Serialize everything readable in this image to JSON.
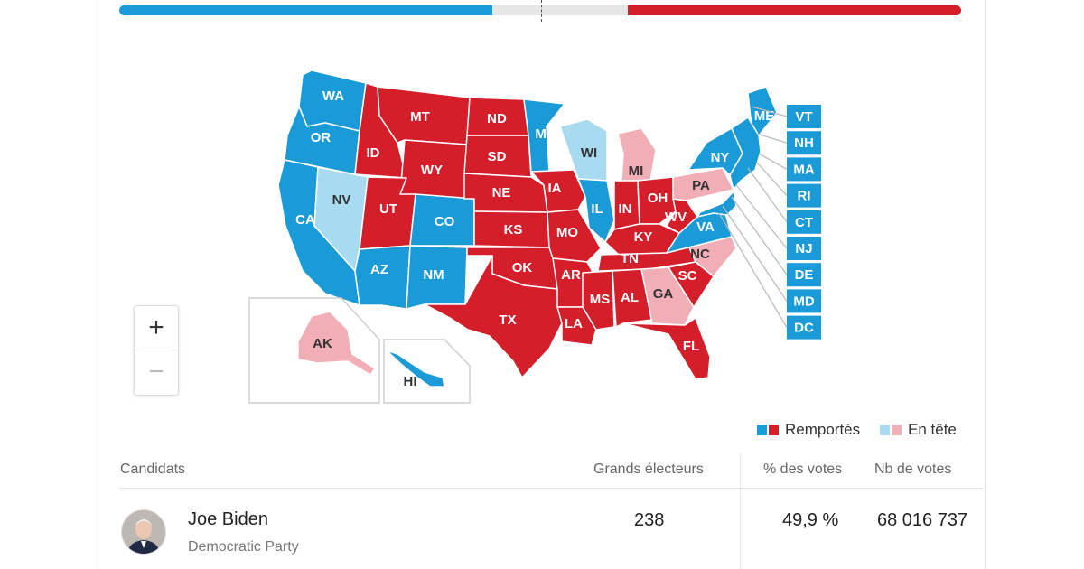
{
  "legend": {
    "won_label": "Remportés",
    "leading_label": "En tête"
  },
  "colors": {
    "dem_won": "#1a9ad6",
    "dem_leading": "#a8daf0",
    "rep_won": "#d41e2a",
    "rep_leading": "#f2aeb6",
    "border": "#ffffff"
  },
  "map": {
    "states": [
      {
        "code": "WA",
        "status": "dem_won"
      },
      {
        "code": "OR",
        "status": "dem_won"
      },
      {
        "code": "CA",
        "status": "dem_won"
      },
      {
        "code": "NV",
        "status": "dem_leading"
      },
      {
        "code": "ID",
        "status": "rep_won"
      },
      {
        "code": "MT",
        "status": "rep_won"
      },
      {
        "code": "WY",
        "status": "rep_won"
      },
      {
        "code": "UT",
        "status": "rep_won"
      },
      {
        "code": "AZ",
        "status": "dem_won"
      },
      {
        "code": "CO",
        "status": "dem_won"
      },
      {
        "code": "NM",
        "status": "dem_won"
      },
      {
        "code": "ND",
        "status": "rep_won"
      },
      {
        "code": "SD",
        "status": "rep_won"
      },
      {
        "code": "NE",
        "status": "rep_won"
      },
      {
        "code": "KS",
        "status": "rep_won"
      },
      {
        "code": "OK",
        "status": "rep_won"
      },
      {
        "code": "TX",
        "status": "rep_won"
      },
      {
        "code": "MN",
        "status": "dem_won"
      },
      {
        "code": "IA",
        "status": "rep_won"
      },
      {
        "code": "MO",
        "status": "rep_won"
      },
      {
        "code": "AR",
        "status": "rep_won"
      },
      {
        "code": "LA",
        "status": "rep_won"
      },
      {
        "code": "WI",
        "status": "dem_leading"
      },
      {
        "code": "IL",
        "status": "dem_won"
      },
      {
        "code": "MI",
        "status": "rep_leading"
      },
      {
        "code": "IN",
        "status": "rep_won"
      },
      {
        "code": "OH",
        "status": "rep_won"
      },
      {
        "code": "KY",
        "status": "rep_won"
      },
      {
        "code": "TN",
        "status": "rep_won"
      },
      {
        "code": "MS",
        "status": "rep_won"
      },
      {
        "code": "AL",
        "status": "rep_won"
      },
      {
        "code": "GA",
        "status": "rep_leading"
      },
      {
        "code": "FL",
        "status": "rep_won"
      },
      {
        "code": "SC",
        "status": "rep_won"
      },
      {
        "code": "NC",
        "status": "rep_leading"
      },
      {
        "code": "VA",
        "status": "dem_won"
      },
      {
        "code": "WV",
        "status": "rep_won"
      },
      {
        "code": "PA",
        "status": "rep_leading"
      },
      {
        "code": "NY",
        "status": "dem_won"
      },
      {
        "code": "ME",
        "status": "dem_won"
      },
      {
        "code": "AK",
        "status": "rep_leading"
      },
      {
        "code": "HI",
        "status": "dem_won"
      }
    ],
    "small_states": [
      {
        "code": "VT",
        "status": "dem_won"
      },
      {
        "code": "NH",
        "status": "dem_won"
      },
      {
        "code": "MA",
        "status": "dem_won"
      },
      {
        "code": "RI",
        "status": "dem_won"
      },
      {
        "code": "CT",
        "status": "dem_won"
      },
      {
        "code": "NJ",
        "status": "dem_won"
      },
      {
        "code": "DE",
        "status": "dem_won"
      },
      {
        "code": "MD",
        "status": "dem_won"
      },
      {
        "code": "DC",
        "status": "dem_won"
      }
    ]
  },
  "zoom": {
    "in_label": "+",
    "out_label": "−"
  },
  "table": {
    "headers": {
      "candidate": "Candidats",
      "electors": "Grands électeurs",
      "percent": "% des votes",
      "votes": "Nb de votes"
    },
    "rows": [
      {
        "name": "Joe Biden",
        "party": "Democratic Party",
        "electors": "238",
        "percent": "49,9 %",
        "votes": "68 016 737",
        "avatar_icon": "portrait-photo"
      }
    ]
  }
}
